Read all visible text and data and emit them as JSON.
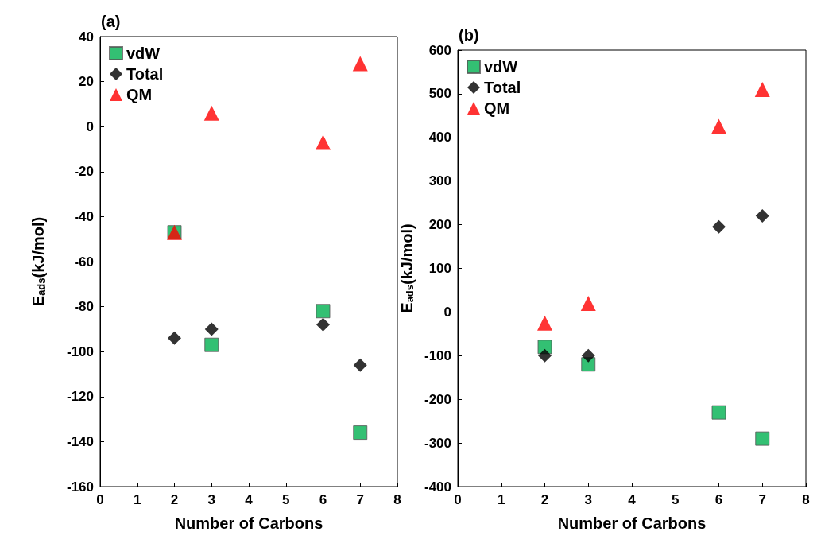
{
  "chart_data": [
    {
      "type": "scatter",
      "title": "(a)",
      "xlabel": "Number of Carbons",
      "ylabel": "E$_{ads}$(kJ/mol)",
      "x": [
        2,
        3,
        6,
        7
      ],
      "xlim": [
        0,
        8
      ],
      "xticks": [
        0,
        1,
        2,
        3,
        4,
        5,
        6,
        7,
        8
      ],
      "ylim": [
        -160,
        40
      ],
      "yticks": [
        -160,
        -140,
        -120,
        -100,
        -80,
        -60,
        -40,
        -20,
        0,
        20,
        40
      ],
      "grid": false,
      "legend": "top left",
      "series": [
        {
          "name": "vdW",
          "color": "#00b050",
          "marker": "square",
          "values": [
            -47,
            -97,
            -82,
            -136
          ]
        },
        {
          "name": "Total",
          "color": "#000000",
          "marker": "diamond",
          "values": [
            -94,
            -90,
            -88,
            -106
          ]
        },
        {
          "name": "QM",
          "color": "#ff0000",
          "marker": "triangle",
          "values": [
            -47,
            6,
            -7,
            28
          ]
        }
      ]
    },
    {
      "type": "scatter",
      "title": "(b)",
      "xlabel": "Number of Carbons",
      "ylabel": "E$_{ads}$(kJ/mol)",
      "x": [
        2,
        3,
        6,
        7
      ],
      "xlim": [
        0,
        8
      ],
      "xticks": [
        0,
        1,
        2,
        3,
        4,
        5,
        6,
        7,
        8
      ],
      "ylim": [
        -400,
        600
      ],
      "yticks": [
        -400,
        -300,
        -200,
        -100,
        0,
        100,
        200,
        300,
        400,
        500,
        600
      ],
      "grid": false,
      "legend": "top left",
      "series": [
        {
          "name": "vdW",
          "color": "#00b050",
          "marker": "square",
          "values": [
            -80,
            -120,
            -230,
            -290
          ]
        },
        {
          "name": "Total",
          "color": "#000000",
          "marker": "diamond",
          "values": [
            -100,
            -100,
            195,
            220
          ]
        },
        {
          "name": "QM",
          "color": "#ff0000",
          "marker": "triangle",
          "values": [
            -25,
            20,
            425,
            510
          ]
        }
      ]
    }
  ]
}
